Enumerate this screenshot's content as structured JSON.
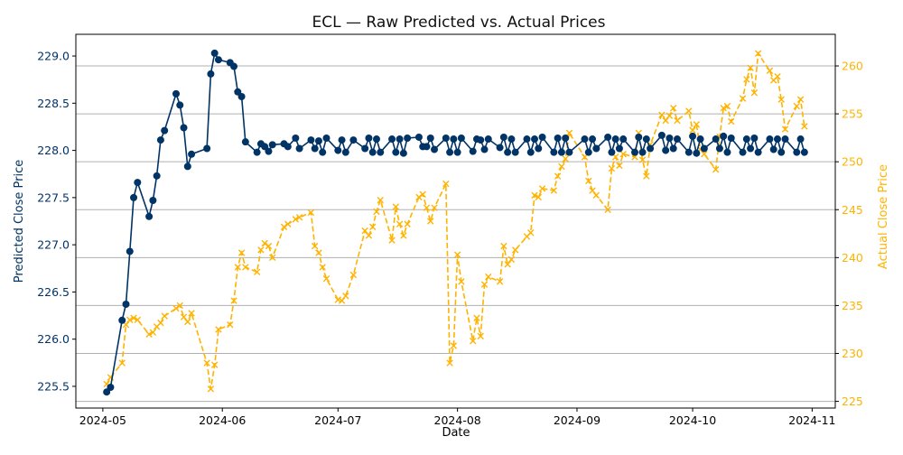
{
  "chart_data": {
    "type": "line",
    "title": "ECL — Raw Predicted vs. Actual Prices",
    "xlabel": "Date",
    "ylabel_left": "Predicted Close Price",
    "ylabel_right": "Actual Close Price",
    "x_ticks": [
      "2024-05",
      "2024-06",
      "2024-07",
      "2024-08",
      "2024-09",
      "2024-10",
      "2024-11"
    ],
    "x_tick_dates": [
      "2024-05-01",
      "2024-06-01",
      "2024-07-01",
      "2024-08-01",
      "2024-09-01",
      "2024-10-01",
      "2024-11-01"
    ],
    "y_left_ticks": [
      "225.5",
      "226.0",
      "226.5",
      "227.0",
      "227.5",
      "228.0",
      "228.5",
      "229.0"
    ],
    "y_right_ticks": [
      "225",
      "230",
      "235",
      "240",
      "245",
      "250",
      "255",
      "260"
    ],
    "xlim": [
      "2024-04-24",
      "2024-11-07"
    ],
    "ylim_left": [
      225.27,
      229.23
    ],
    "ylim_right": [
      224.3,
      263.3
    ],
    "grid": "horizontal lines at right-axis ticks",
    "colors": {
      "predicted": "#003366",
      "actual": "#FFB300"
    },
    "series": [
      {
        "key": "predicted",
        "axis": "left",
        "style": "solid line with circle markers",
        "points": [
          [
            "2024-05-02",
            225.44
          ],
          [
            "2024-05-03",
            225.49
          ],
          [
            "2024-05-06",
            226.2
          ],
          [
            "2024-05-07",
            226.37
          ],
          [
            "2024-05-08",
            226.93
          ],
          [
            "2024-05-09",
            227.5
          ],
          [
            "2024-05-10",
            227.66
          ],
          [
            "2024-05-13",
            227.3
          ],
          [
            "2024-05-14",
            227.47
          ],
          [
            "2024-05-15",
            227.73
          ],
          [
            "2024-05-16",
            228.11
          ],
          [
            "2024-05-17",
            228.21
          ],
          [
            "2024-05-20",
            228.6
          ],
          [
            "2024-05-21",
            228.48
          ],
          [
            "2024-05-22",
            228.24
          ],
          [
            "2024-05-23",
            227.83
          ],
          [
            "2024-05-24",
            227.96
          ],
          [
            "2024-05-28",
            228.02
          ],
          [
            "2024-05-29",
            228.81
          ],
          [
            "2024-05-30",
            229.03
          ],
          [
            "2024-05-31",
            228.96
          ],
          [
            "2024-06-03",
            228.93
          ],
          [
            "2024-06-04",
            228.89
          ],
          [
            "2024-06-05",
            228.62
          ],
          [
            "2024-06-06",
            228.57
          ],
          [
            "2024-06-07",
            228.09
          ],
          [
            "2024-06-10",
            227.98
          ],
          [
            "2024-06-11",
            228.07
          ],
          [
            "2024-06-12",
            228.04
          ],
          [
            "2024-06-13",
            227.99
          ],
          [
            "2024-06-14",
            228.06
          ],
          [
            "2024-06-17",
            228.07
          ],
          [
            "2024-06-18",
            228.04
          ],
          [
            "2024-06-20",
            228.13
          ],
          [
            "2024-06-21",
            228.02
          ],
          [
            "2024-06-24",
            228.11
          ],
          [
            "2024-06-25",
            228.02
          ],
          [
            "2024-06-26",
            228.1
          ],
          [
            "2024-06-27",
            227.98
          ],
          [
            "2024-06-28",
            228.13
          ],
          [
            "2024-07-01",
            228.0
          ],
          [
            "2024-07-02",
            228.11
          ],
          [
            "2024-07-03",
            227.98
          ],
          [
            "2024-07-05",
            228.11
          ],
          [
            "2024-07-08",
            228.02
          ],
          [
            "2024-07-09",
            228.13
          ],
          [
            "2024-07-10",
            227.98
          ],
          [
            "2024-07-11",
            228.12
          ],
          [
            "2024-07-12",
            227.98
          ],
          [
            "2024-07-15",
            228.12
          ],
          [
            "2024-07-16",
            227.98
          ],
          [
            "2024-07-17",
            228.12
          ],
          [
            "2024-07-18",
            227.97
          ],
          [
            "2024-07-19",
            228.13
          ],
          [
            "2024-07-22",
            228.14
          ],
          [
            "2024-07-23",
            228.04
          ],
          [
            "2024-07-24",
            228.04
          ],
          [
            "2024-07-25",
            228.13
          ],
          [
            "2024-07-26",
            228.01
          ],
          [
            "2024-07-29",
            228.13
          ],
          [
            "2024-07-30",
            227.98
          ],
          [
            "2024-07-31",
            228.12
          ],
          [
            "2024-08-01",
            227.98
          ],
          [
            "2024-08-02",
            228.13
          ],
          [
            "2024-08-05",
            227.99
          ],
          [
            "2024-08-06",
            228.12
          ],
          [
            "2024-08-07",
            228.11
          ],
          [
            "2024-08-08",
            228.01
          ],
          [
            "2024-08-09",
            228.12
          ],
          [
            "2024-08-12",
            228.03
          ],
          [
            "2024-08-13",
            228.14
          ],
          [
            "2024-08-14",
            227.98
          ],
          [
            "2024-08-15",
            228.12
          ],
          [
            "2024-08-16",
            227.98
          ],
          [
            "2024-08-19",
            228.12
          ],
          [
            "2024-08-20",
            227.98
          ],
          [
            "2024-08-21",
            228.12
          ],
          [
            "2024-08-22",
            228.02
          ],
          [
            "2024-08-23",
            228.14
          ],
          [
            "2024-08-26",
            227.98
          ],
          [
            "2024-08-27",
            228.13
          ],
          [
            "2024-08-28",
            227.98
          ],
          [
            "2024-08-29",
            228.13
          ],
          [
            "2024-08-30",
            227.98
          ],
          [
            "2024-09-03",
            228.12
          ],
          [
            "2024-09-04",
            227.98
          ],
          [
            "2024-09-05",
            228.12
          ],
          [
            "2024-09-06",
            228.02
          ],
          [
            "2024-09-09",
            228.14
          ],
          [
            "2024-09-10",
            227.98
          ],
          [
            "2024-09-11",
            228.12
          ],
          [
            "2024-09-12",
            228.02
          ],
          [
            "2024-09-13",
            228.12
          ],
          [
            "2024-09-16",
            227.98
          ],
          [
            "2024-09-17",
            228.14
          ],
          [
            "2024-09-18",
            227.98
          ],
          [
            "2024-09-19",
            228.12
          ],
          [
            "2024-09-20",
            228.02
          ],
          [
            "2024-09-23",
            228.16
          ],
          [
            "2024-09-24",
            228.0
          ],
          [
            "2024-09-25",
            228.13
          ],
          [
            "2024-09-26",
            228.02
          ],
          [
            "2024-09-27",
            228.12
          ],
          [
            "2024-09-30",
            227.98
          ],
          [
            "2024-10-01",
            228.15
          ],
          [
            "2024-10-02",
            227.97
          ],
          [
            "2024-10-03",
            228.12
          ],
          [
            "2024-10-04",
            228.02
          ],
          [
            "2024-10-07",
            228.12
          ],
          [
            "2024-10-08",
            228.02
          ],
          [
            "2024-10-09",
            228.15
          ],
          [
            "2024-10-10",
            227.98
          ],
          [
            "2024-10-11",
            228.13
          ],
          [
            "2024-10-14",
            227.98
          ],
          [
            "2024-10-15",
            228.12
          ],
          [
            "2024-10-16",
            228.02
          ],
          [
            "2024-10-17",
            228.13
          ],
          [
            "2024-10-18",
            227.98
          ],
          [
            "2024-10-21",
            228.12
          ],
          [
            "2024-10-22",
            228.01
          ],
          [
            "2024-10-23",
            228.12
          ],
          [
            "2024-10-24",
            227.98
          ],
          [
            "2024-10-25",
            228.12
          ],
          [
            "2024-10-28",
            227.98
          ],
          [
            "2024-10-29",
            228.12
          ],
          [
            "2024-10-30",
            227.98
          ]
        ]
      },
      {
        "key": "actual",
        "axis": "right",
        "style": "dashed line with x markers",
        "points": [
          [
            "2024-05-02",
            226.8
          ],
          [
            "2024-05-03",
            227.5
          ],
          [
            "2024-05-06",
            229.0
          ],
          [
            "2024-05-07",
            233.0
          ],
          [
            "2024-05-08",
            233.5
          ],
          [
            "2024-05-09",
            233.7
          ],
          [
            "2024-05-10",
            233.5
          ],
          [
            "2024-05-13",
            232.0
          ],
          [
            "2024-05-14",
            232.2
          ],
          [
            "2024-05-15",
            232.8
          ],
          [
            "2024-05-16",
            233.2
          ],
          [
            "2024-05-17",
            233.9
          ],
          [
            "2024-05-20",
            234.7
          ],
          [
            "2024-05-21",
            235.0
          ],
          [
            "2024-05-22",
            233.8
          ],
          [
            "2024-05-23",
            233.3
          ],
          [
            "2024-05-24",
            234.2
          ],
          [
            "2024-05-28",
            229.0
          ],
          [
            "2024-05-29",
            226.3
          ],
          [
            "2024-05-30",
            228.8
          ],
          [
            "2024-05-31",
            232.5
          ],
          [
            "2024-06-03",
            233.0
          ],
          [
            "2024-06-04",
            235.5
          ],
          [
            "2024-06-05",
            239.0
          ],
          [
            "2024-06-06",
            240.5
          ],
          [
            "2024-06-07",
            239.0
          ],
          [
            "2024-06-10",
            238.5
          ],
          [
            "2024-06-11",
            240.8
          ],
          [
            "2024-06-12",
            241.5
          ],
          [
            "2024-06-13",
            241.2
          ],
          [
            "2024-06-14",
            240.0
          ],
          [
            "2024-06-17",
            243.2
          ],
          [
            "2024-06-18",
            243.5
          ],
          [
            "2024-06-20",
            244.0
          ],
          [
            "2024-06-21",
            244.2
          ],
          [
            "2024-06-24",
            244.7
          ],
          [
            "2024-06-25",
            241.2
          ],
          [
            "2024-06-26",
            240.5
          ],
          [
            "2024-06-27",
            239.0
          ],
          [
            "2024-06-28",
            237.8
          ],
          [
            "2024-07-01",
            235.6
          ],
          [
            "2024-07-02",
            235.5
          ],
          [
            "2024-07-03",
            236.0
          ],
          [
            "2024-07-05",
            238.2
          ],
          [
            "2024-07-08",
            242.8
          ],
          [
            "2024-07-09",
            242.3
          ],
          [
            "2024-07-10",
            243.2
          ],
          [
            "2024-07-11",
            244.8
          ],
          [
            "2024-07-12",
            246.0
          ],
          [
            "2024-07-15",
            241.8
          ],
          [
            "2024-07-16",
            245.3
          ],
          [
            "2024-07-17",
            243.5
          ],
          [
            "2024-07-18",
            242.3
          ],
          [
            "2024-07-19",
            243.5
          ],
          [
            "2024-07-22",
            246.3
          ],
          [
            "2024-07-23",
            246.6
          ],
          [
            "2024-07-24",
            245.2
          ],
          [
            "2024-07-25",
            243.8
          ],
          [
            "2024-07-26",
            245.2
          ],
          [
            "2024-07-29",
            247.7
          ],
          [
            "2024-07-30",
            229.0
          ],
          [
            "2024-07-31",
            230.8
          ],
          [
            "2024-08-01",
            240.3
          ],
          [
            "2024-08-02",
            237.5
          ],
          [
            "2024-08-05",
            231.3
          ],
          [
            "2024-08-06",
            233.7
          ],
          [
            "2024-08-07",
            231.8
          ],
          [
            "2024-08-08",
            237.2
          ],
          [
            "2024-08-09",
            238.0
          ],
          [
            "2024-08-12",
            237.5
          ],
          [
            "2024-08-13",
            241.2
          ],
          [
            "2024-08-14",
            239.3
          ],
          [
            "2024-08-15",
            239.8
          ],
          [
            "2024-08-16",
            240.8
          ],
          [
            "2024-08-19",
            242.2
          ],
          [
            "2024-08-20",
            242.6
          ],
          [
            "2024-08-21",
            246.5
          ],
          [
            "2024-08-22",
            246.3
          ],
          [
            "2024-08-23",
            247.2
          ],
          [
            "2024-08-26",
            247.0
          ],
          [
            "2024-08-27",
            248.5
          ],
          [
            "2024-08-28",
            249.5
          ],
          [
            "2024-08-29",
            250.3
          ],
          [
            "2024-08-30",
            253.0
          ],
          [
            "2024-09-03",
            250.5
          ],
          [
            "2024-09-04",
            248.0
          ],
          [
            "2024-09-05",
            247.0
          ],
          [
            "2024-09-06",
            246.5
          ],
          [
            "2024-09-09",
            245.0
          ],
          [
            "2024-09-10",
            249.3
          ],
          [
            "2024-09-11",
            250.5
          ],
          [
            "2024-09-12",
            249.6
          ],
          [
            "2024-09-13",
            250.8
          ],
          [
            "2024-09-16",
            250.5
          ],
          [
            "2024-09-17",
            253.0
          ],
          [
            "2024-09-18",
            250.2
          ],
          [
            "2024-09-19",
            248.5
          ],
          [
            "2024-09-20",
            251.8
          ],
          [
            "2024-09-23",
            254.9
          ],
          [
            "2024-09-24",
            254.3
          ],
          [
            "2024-09-25",
            254.8
          ],
          [
            "2024-09-26",
            255.6
          ],
          [
            "2024-09-27",
            254.3
          ],
          [
            "2024-09-30",
            255.3
          ],
          [
            "2024-10-01",
            253.3
          ],
          [
            "2024-10-02",
            253.9
          ],
          [
            "2024-10-03",
            251.3
          ],
          [
            "2024-10-04",
            250.8
          ],
          [
            "2024-10-07",
            249.2
          ],
          [
            "2024-10-08",
            252.6
          ],
          [
            "2024-10-09",
            255.6
          ],
          [
            "2024-10-10",
            255.8
          ],
          [
            "2024-10-11",
            254.2
          ],
          [
            "2024-10-14",
            256.6
          ],
          [
            "2024-10-15",
            258.6
          ],
          [
            "2024-10-16",
            259.8
          ],
          [
            "2024-10-17",
            257.2
          ],
          [
            "2024-10-18",
            261.3
          ],
          [
            "2024-10-21",
            259.5
          ],
          [
            "2024-10-22",
            258.5
          ],
          [
            "2024-10-23",
            258.9
          ],
          [
            "2024-10-24",
            256.5
          ],
          [
            "2024-10-25",
            253.4
          ],
          [
            "2024-10-28",
            255.8
          ],
          [
            "2024-10-29",
            256.5
          ],
          [
            "2024-10-30",
            253.7
          ]
        ]
      }
    ]
  }
}
